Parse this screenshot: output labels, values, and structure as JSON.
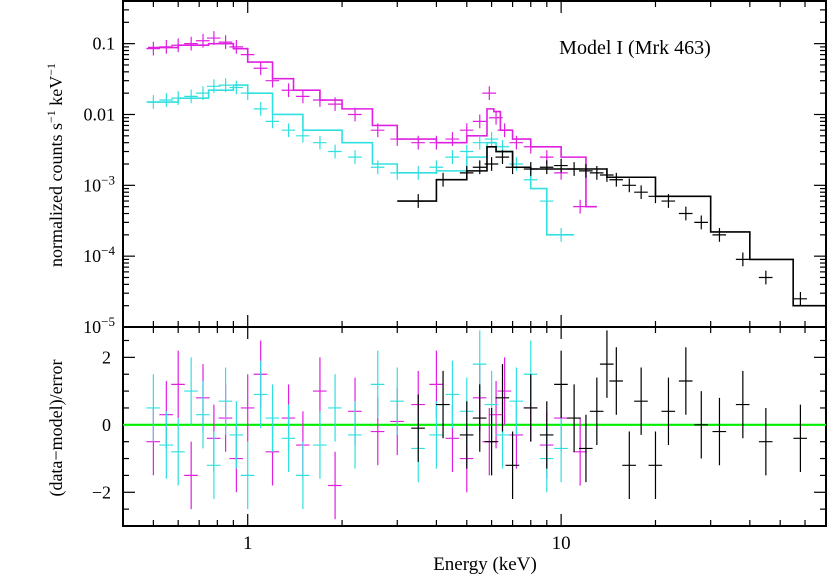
{
  "chart_data": {
    "type": "scatter",
    "title": "Model I (Mrk 463)",
    "xlabel": "Energy (keV)",
    "xscale": "log",
    "xlim": [
      0.4,
      70
    ],
    "x_ticks": [
      {
        "value": 1,
        "label": "1"
      },
      {
        "value": 10,
        "label": "10"
      }
    ],
    "colors": {
      "magenta": "#e020e0",
      "cyan": "#30e0e0",
      "black": "#000000",
      "zero_line": "#00ee00"
    },
    "top_panel": {
      "ylabel_main": "normalized counts s",
      "ylabel_sup1": "−1",
      "ylabel_mid": " keV",
      "ylabel_sup2": "−1",
      "yscale": "log",
      "ylim": [
        1e-05,
        0.4
      ],
      "y_ticks": [
        {
          "value": 0.1,
          "base": "0.1",
          "exp": ""
        },
        {
          "value": 0.01,
          "base": "0.01",
          "exp": ""
        },
        {
          "value": 0.001,
          "base": "10",
          "exp": "−3"
        },
        {
          "value": 0.0001,
          "base": "10",
          "exp": "−4"
        },
        {
          "value": 1e-05,
          "base": "10",
          "exp": "−5"
        }
      ],
      "series": [
        {
          "name": "magenta",
          "color": "#e020e0",
          "data_x": [
            0.5,
            0.55,
            0.6,
            0.66,
            0.72,
            0.78,
            0.85,
            0.92,
            1.0,
            1.1,
            1.2,
            1.35,
            1.5,
            1.7,
            1.9,
            2.2,
            2.6,
            3.0,
            3.5,
            4.0,
            4.5,
            5.0,
            5.5,
            5.9,
            6.2,
            6.6,
            7.2,
            8.0,
            9.0,
            10.0,
            11.5
          ],
          "data_y": [
            0.085,
            0.09,
            0.095,
            0.1,
            0.11,
            0.12,
            0.105,
            0.09,
            0.07,
            0.045,
            0.03,
            0.022,
            0.018,
            0.016,
            0.014,
            0.01,
            0.006,
            0.0045,
            0.004,
            0.004,
            0.0045,
            0.006,
            0.008,
            0.02,
            0.009,
            0.006,
            0.004,
            0.0035,
            0.0025,
            0.0015,
            0.0005
          ],
          "model_x": [
            0.48,
            0.6,
            0.75,
            0.9,
            1.0,
            1.2,
            1.4,
            1.7,
            2.0,
            2.5,
            3.0,
            4.0,
            5.0,
            5.8,
            6.1,
            6.4,
            7.0,
            8.0,
            10.0,
            12.0,
            13.0
          ],
          "model_y": [
            0.088,
            0.095,
            0.1,
            0.085,
            0.055,
            0.032,
            0.022,
            0.016,
            0.012,
            0.007,
            0.0045,
            0.004,
            0.005,
            0.012,
            0.011,
            0.006,
            0.0045,
            0.0035,
            0.0025,
            0.0005,
            0.0005
          ]
        },
        {
          "name": "cyan",
          "color": "#30e0e0",
          "data_x": [
            0.5,
            0.55,
            0.6,
            0.66,
            0.72,
            0.78,
            0.85,
            0.92,
            1.0,
            1.1,
            1.2,
            1.35,
            1.5,
            1.7,
            1.9,
            2.2,
            2.6,
            3.0,
            3.5,
            4.0,
            4.5,
            5.0,
            5.5,
            6.0,
            6.5,
            7.2,
            8.0,
            9.0,
            10.0
          ],
          "data_y": [
            0.015,
            0.016,
            0.017,
            0.018,
            0.02,
            0.025,
            0.026,
            0.024,
            0.02,
            0.012,
            0.008,
            0.006,
            0.005,
            0.004,
            0.003,
            0.0025,
            0.0018,
            0.0015,
            0.0015,
            0.0018,
            0.0025,
            0.003,
            0.004,
            0.0045,
            0.0035,
            0.002,
            0.0012,
            0.0006,
            0.0002
          ],
          "model_x": [
            0.48,
            0.6,
            0.75,
            0.9,
            1.0,
            1.2,
            1.5,
            2.0,
            2.5,
            3.0,
            4.0,
            5.0,
            5.8,
            6.2,
            7.0,
            8.0,
            9.0,
            11.0
          ],
          "model_y": [
            0.015,
            0.017,
            0.022,
            0.026,
            0.02,
            0.01,
            0.006,
            0.004,
            0.002,
            0.0015,
            0.0016,
            0.0025,
            0.004,
            0.003,
            0.0018,
            0.0009,
            0.0002,
            0.0002
          ]
        },
        {
          "name": "black",
          "color": "#000000",
          "data_x": [
            3.5,
            4.2,
            5.0,
            5.5,
            6.0,
            6.5,
            7.0,
            8.0,
            9.0,
            10.0,
            11.0,
            12.0,
            13.0,
            14.0,
            15.0,
            16.5,
            18.0,
            20.0,
            22.0,
            25.0,
            28.0,
            32.0,
            38.0,
            45.0,
            58.0
          ],
          "data_y": [
            0.0006,
            0.0012,
            0.0015,
            0.0018,
            0.002,
            0.0025,
            0.0018,
            0.0017,
            0.0018,
            0.0019,
            0.0017,
            0.0016,
            0.0015,
            0.0014,
            0.0012,
            0.001,
            0.0008,
            0.0007,
            0.0006,
            0.0004,
            0.0003,
            0.0002,
            9e-05,
            5e-05,
            2.5e-05
          ],
          "model_x": [
            3.0,
            4.0,
            5.0,
            5.8,
            6.2,
            7.0,
            8.0,
            10.0,
            14.0,
            20.0,
            30.0,
            40.0,
            55.0,
            70.0
          ],
          "model_y": [
            0.0006,
            0.0012,
            0.0016,
            0.0035,
            0.003,
            0.0018,
            0.0017,
            0.0017,
            0.0013,
            0.0007,
            0.00022,
            9e-05,
            2e-05,
            2e-05
          ]
        }
      ]
    },
    "bottom_panel": {
      "ylabel": "(data−model)/error",
      "ylim": [
        -3,
        2.9
      ],
      "y_ticks": [
        {
          "value": 2,
          "label": "2"
        },
        {
          "value": 0,
          "label": "0"
        },
        {
          "value": -2,
          "label": "−2"
        }
      ],
      "zero_line_value": 0,
      "series": [
        {
          "name": "magenta",
          "color": "#e020e0",
          "x": [
            0.5,
            0.55,
            0.6,
            0.66,
            0.72,
            0.78,
            0.85,
            0.92,
            1.0,
            1.1,
            1.2,
            1.35,
            1.5,
            1.7,
            1.9,
            2.2,
            2.6,
            3.0,
            3.5,
            4.0,
            4.5,
            5.0,
            5.5,
            5.9,
            6.2,
            6.6,
            7.2,
            8.0,
            9.0,
            10.0,
            11.5
          ],
          "y": [
            -0.5,
            0.3,
            1.2,
            -1.5,
            0.8,
            -0.4,
            0.2,
            -1.0,
            0.5,
            1.5,
            -0.8,
            0.2,
            -0.6,
            1.0,
            -1.8,
            0.4,
            -0.2,
            0.1,
            0.6,
            1.2,
            -0.4,
            -1.0,
            0.8,
            -0.5,
            0.3,
            1.0,
            -0.3,
            0.5,
            -0.6,
            0.2,
            -0.8
          ]
        },
        {
          "name": "cyan",
          "color": "#30e0e0",
          "x": [
            0.5,
            0.55,
            0.6,
            0.66,
            0.72,
            0.78,
            0.85,
            0.92,
            1.0,
            1.1,
            1.2,
            1.35,
            1.5,
            1.7,
            1.9,
            2.2,
            2.6,
            3.0,
            3.5,
            4.0,
            4.5,
            5.0,
            5.5,
            6.0,
            6.5,
            7.2,
            8.0,
            9.0,
            10.0
          ],
          "y": [
            0.5,
            -0.6,
            -0.8,
            1.0,
            0.3,
            -1.2,
            0.7,
            -0.3,
            -1.5,
            0.9,
            0.2,
            -0.4,
            -1.5,
            -0.6,
            0.5,
            -0.3,
            1.2,
            0.7,
            -0.7,
            -0.3,
            0.9,
            0.4,
            1.8,
            0.6,
            -0.3,
            0.7,
            1.5,
            -1.0,
            -0.7
          ]
        },
        {
          "name": "black",
          "color": "#000000",
          "x": [
            3.5,
            4.2,
            5.0,
            5.5,
            6.0,
            6.5,
            7.0,
            8.0,
            9.0,
            10.0,
            11.0,
            12.0,
            13.0,
            14.0,
            15.0,
            16.5,
            18.0,
            20.0,
            22.0,
            25.0,
            28.0,
            32.0,
            38.0,
            45.0,
            58.0
          ],
          "y": [
            -0.1,
            0.6,
            -0.3,
            0.2,
            -0.5,
            0.8,
            -1.2,
            0.5,
            -0.3,
            1.2,
            0.2,
            -0.7,
            0.4,
            1.8,
            1.3,
            -1.2,
            0.7,
            -1.2,
            0.4,
            1.3,
            0.0,
            -0.2,
            0.6,
            -0.5,
            -0.4
          ]
        }
      ]
    }
  }
}
